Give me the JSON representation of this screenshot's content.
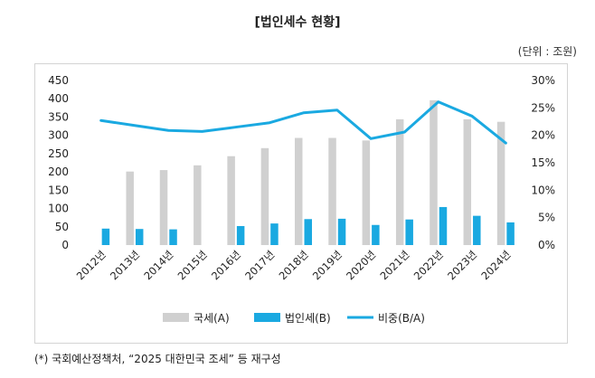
{
  "page": {
    "title": "[법인세수 현황]",
    "unit": "(단위 : 조원)",
    "footnote": "(*) 국회예산정책처, “2025 대한민국 조세” 등 재구성"
  },
  "chart_data": {
    "type": "bar",
    "categories": [
      "2012년",
      "2013년",
      "2014년",
      "2015년",
      "2016년",
      "2017년",
      "2018년",
      "2019년",
      "2020년",
      "2021년",
      "2022년",
      "2023년",
      "2024년"
    ],
    "series": [
      {
        "name": "국세(A)",
        "kind": "bar",
        "axis": "left",
        "color": "#d0d0d0",
        "values": [
          null,
          201,
          205,
          218,
          243,
          265,
          293,
          293,
          286,
          344,
          396,
          344,
          337
        ]
      },
      {
        "name": "법인세(B)",
        "kind": "bar",
        "axis": "left",
        "color": "#1aa9e1",
        "values": [
          45,
          44,
          43,
          null,
          52,
          59,
          71,
          72,
          55,
          70,
          104,
          80,
          62
        ]
      },
      {
        "name": "비중(B/A)",
        "kind": "line",
        "axis": "right",
        "color": "#1aa9e1",
        "values": [
          22.7,
          21.8,
          20.9,
          20.7,
          21.5,
          22.3,
          24.1,
          24.6,
          19.4,
          20.6,
          26.1,
          23.5,
          18.6
        ]
      }
    ],
    "y_left": {
      "min": 0,
      "max": 450,
      "ticks": [
        "0",
        "50",
        "100",
        "150",
        "200",
        "250",
        "300",
        "350",
        "400",
        "450"
      ]
    },
    "y_right": {
      "min": 0,
      "max": 30,
      "ticks": [
        "0%",
        "5%",
        "10%",
        "15%",
        "20%",
        "25%",
        "30%"
      ]
    },
    "grid": false,
    "legend_position": "bottom"
  }
}
